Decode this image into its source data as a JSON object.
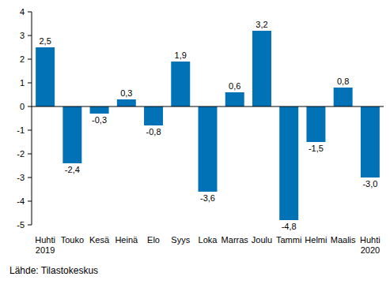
{
  "chart_data": {
    "type": "bar",
    "categories": [
      "Huhti 2019",
      "Touko",
      "Kesä",
      "Heinä",
      "Elo",
      "Syys",
      "Loka",
      "Marras",
      "Joulu",
      "Tammi",
      "Helmi",
      "Maalis",
      "Huhti 2020"
    ],
    "values": [
      2.5,
      -2.4,
      -0.3,
      0.3,
      -0.8,
      1.9,
      -3.6,
      0.6,
      3.2,
      -4.8,
      -1.5,
      0.8,
      -3.0
    ],
    "value_labels": [
      "2,5",
      "-2,4",
      "-0,3",
      "0,3",
      "-0,8",
      "1,9",
      "-3,6",
      "0,6",
      "3,2",
      "-4,8",
      "-1,5",
      "0,8",
      "-3,0"
    ],
    "data_labels": true,
    "color": "#0072b5",
    "ylim": [
      -5,
      4
    ],
    "yticks": [
      -5,
      -4,
      -3,
      -2,
      -1,
      0,
      1,
      2,
      3,
      4
    ],
    "grid": false,
    "source": "Lähde: Tilastokeskus"
  }
}
